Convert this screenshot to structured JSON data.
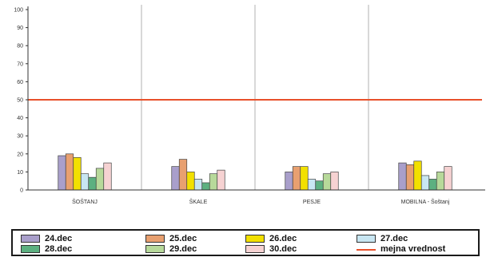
{
  "chart_data": {
    "type": "bar",
    "categories": [
      "ŠOŠTANJ",
      "ŠKALE",
      "PESJE",
      "MOBILNA - Šoštanj"
    ],
    "series": [
      {
        "name": "24.dec",
        "color": "#a99fcb",
        "values": [
          19,
          13,
          10,
          15
        ]
      },
      {
        "name": "25.dec",
        "color": "#e8a070",
        "values": [
          20,
          17,
          13,
          14
        ]
      },
      {
        "name": "26.dec",
        "color": "#f2e000",
        "values": [
          18,
          10,
          13,
          16
        ]
      },
      {
        "name": "27.dec",
        "color": "#c8e6f2",
        "values": [
          9,
          6,
          6,
          8
        ]
      },
      {
        "name": "28.dec",
        "color": "#5cb080",
        "values": [
          7,
          4,
          5,
          6
        ]
      },
      {
        "name": "29.dec",
        "color": "#b7d99a",
        "values": [
          12,
          9,
          9,
          10
        ]
      },
      {
        "name": "30.dec",
        "color": "#f6d2d2",
        "values": [
          15,
          11,
          10,
          13
        ]
      }
    ],
    "reference_line": {
      "name": "mejna vrednost",
      "value": 50,
      "color": "#e8502a"
    },
    "ylim": [
      0,
      100
    ],
    "yticks": [
      0,
      10,
      20,
      30,
      40,
      50,
      60,
      70,
      80,
      90,
      100
    ],
    "grid": "vertical category separators",
    "legend_position": "bottom",
    "title": "",
    "xlabel": "",
    "ylabel": ""
  }
}
